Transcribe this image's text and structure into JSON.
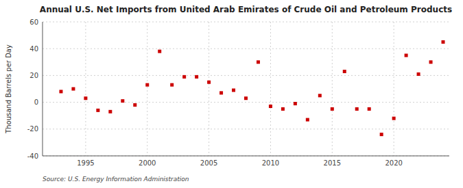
{
  "chart_data": {
    "type": "scatter",
    "title": "Annual U.S. Net Imports from United Arab Emirates of Crude Oil and Petroleum Products",
    "y_label": "Thousand Barrels per Day",
    "annotations": [
      "Source: U.S. Energy Information Administration"
    ],
    "x": [
      1993,
      1994,
      1995,
      1996,
      1997,
      1998,
      1999,
      2000,
      2001,
      2002,
      2003,
      2004,
      2005,
      2006,
      2007,
      2008,
      2009,
      2010,
      2011,
      2012,
      2013,
      2014,
      2015,
      2016,
      2017,
      2018,
      2019,
      2020,
      2021,
      2022,
      2023,
      2024
    ],
    "values": [
      8,
      10,
      3,
      -6,
      -7,
      1,
      -2,
      13,
      38,
      13,
      19,
      19,
      15,
      7,
      9,
      3,
      30,
      -3,
      -5,
      -1,
      -13,
      5,
      -5,
      23,
      -5,
      -5,
      -24,
      -12,
      35,
      21,
      30,
      45
    ],
    "color": "#cc0000",
    "marker": "square",
    "xlim": [
      1991.5,
      2024.5
    ],
    "xticks": [
      1995,
      2000,
      2005,
      2010,
      2015,
      2020
    ],
    "ylim": [
      -40,
      60
    ],
    "yticks": [
      -40,
      -20,
      0,
      20,
      40,
      60
    ],
    "grid": true
  }
}
